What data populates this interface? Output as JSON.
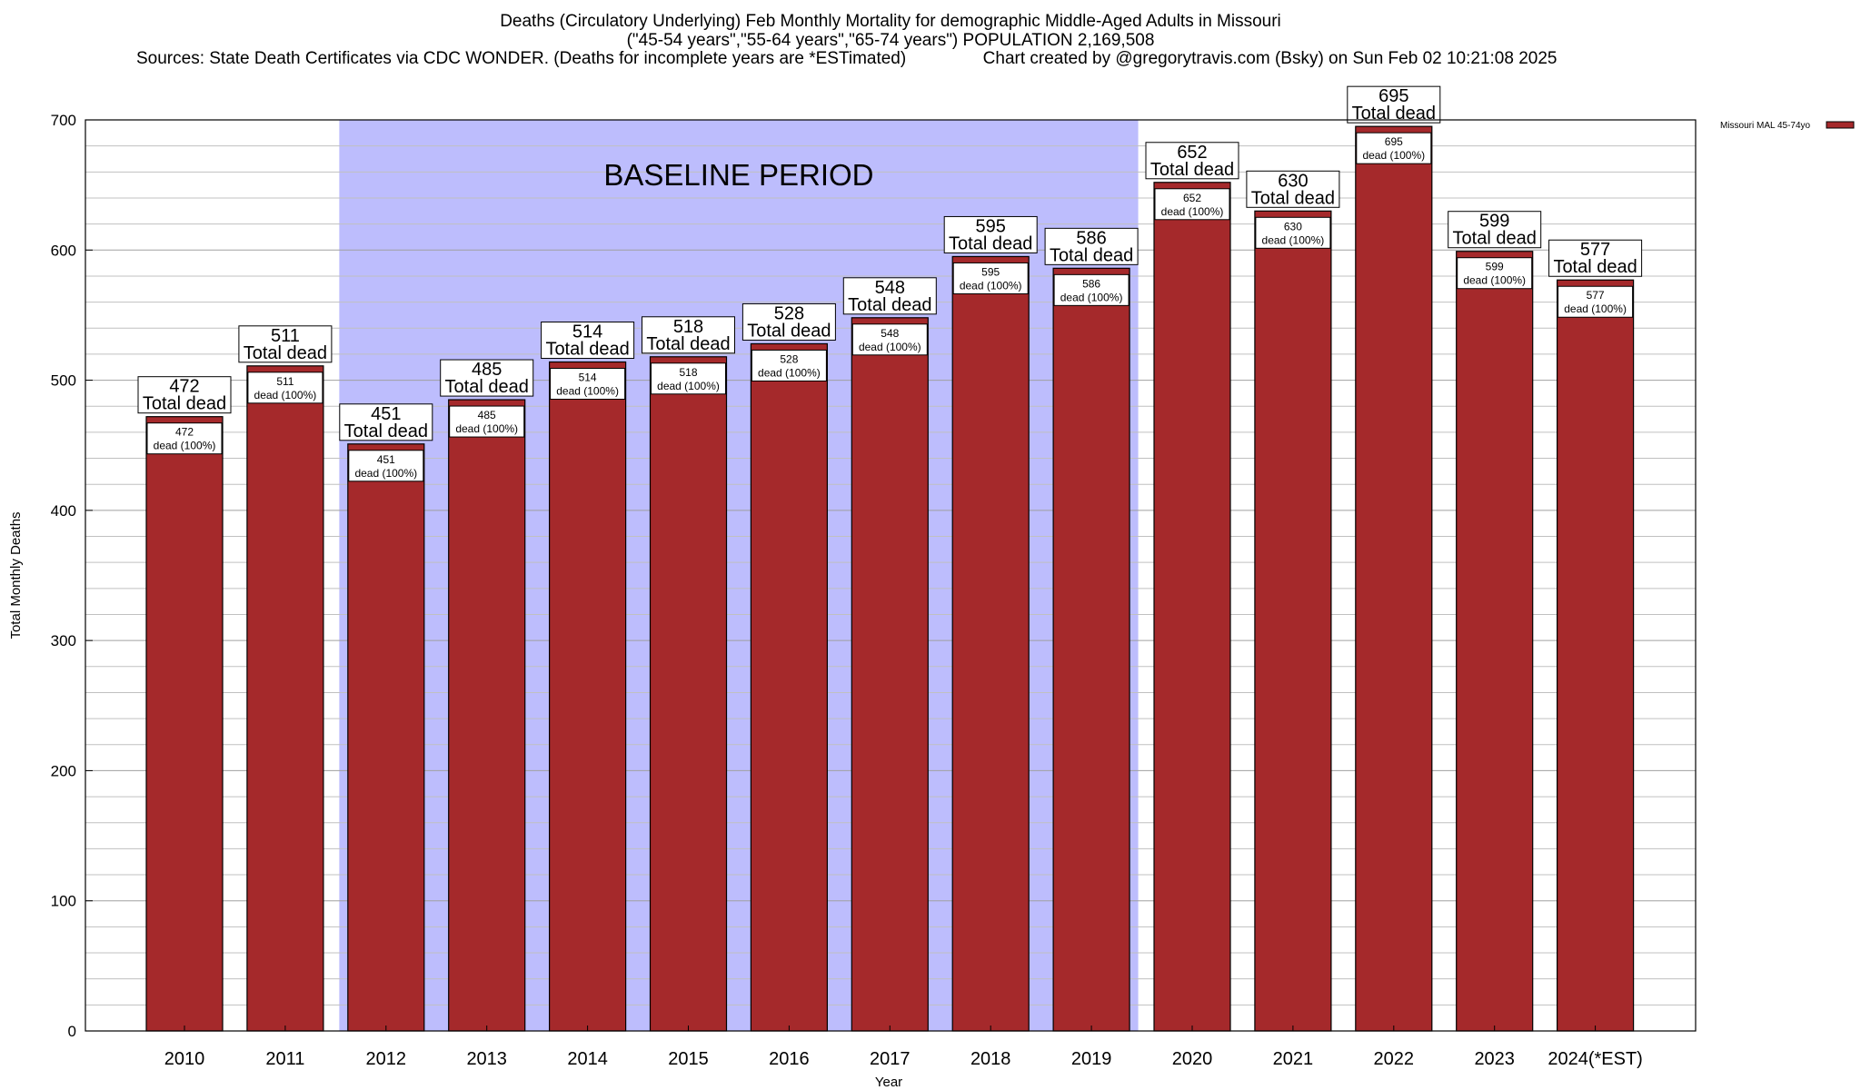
{
  "title_line1": "Deaths (Circulatory Underlying) Feb Monthly Mortality for demographic Middle-Aged Adults in Missouri",
  "title_line2": "(\"45-54 years\",\"55-64 years\",\"65-74 years\") POPULATION 2,169,508",
  "title_line3": "Sources: State Death Certificates via CDC WONDER. (Deaths for incomplete years are *ESTimated)                Chart created by @gregorytravis.com (Bsky) on Sun Feb 02 10:21:08 2025",
  "colors": {
    "bar": "#a5292b",
    "bar_edge": "#000000",
    "baseline_band": "#bdbdfd",
    "grid": "#c0c0c0"
  },
  "chart_data": {
    "type": "bar",
    "categories": [
      "2010",
      "2011",
      "2012",
      "2013",
      "2014",
      "2015",
      "2016",
      "2017",
      "2018",
      "2019",
      "2020",
      "2021",
      "2022",
      "2023",
      "2024(*EST)"
    ],
    "series": [
      {
        "name": "Missouri MAL 45-74yo",
        "values": [
          472,
          511,
          451,
          485,
          514,
          518,
          528,
          548,
          595,
          586,
          652,
          630,
          695,
          599,
          577
        ]
      }
    ],
    "ylim": [
      0,
      700
    ],
    "yticks": [
      0,
      100,
      200,
      300,
      400,
      500,
      600,
      700
    ],
    "xlabel": "Year",
    "ylabel": "Total Monthly Deaths",
    "legend": "Missouri MAL 45-74yo",
    "legend_position": "top-right",
    "bar_label_top_suffix": "Total dead",
    "bar_label_inner_suffix": "dead (100%)",
    "baseline_annotation": "BASELINE PERIOD",
    "baseline_range": [
      "2012",
      "2019"
    ],
    "grid": true
  }
}
